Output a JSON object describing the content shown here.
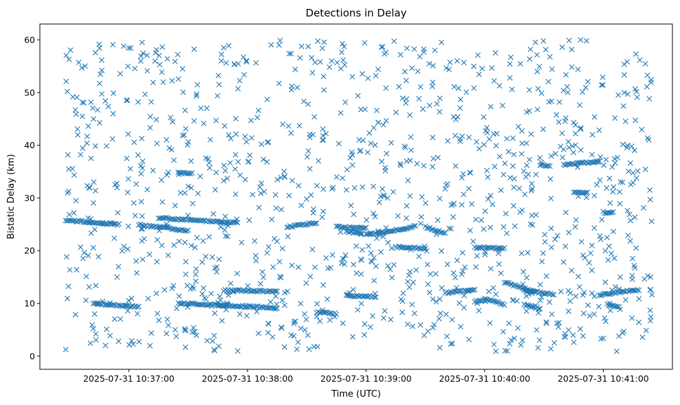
{
  "chart_data": {
    "type": "scatter",
    "title": "Detections in Delay",
    "xlabel": "Time (UTC)",
    "ylabel": "Bistatic Delay (km)",
    "xlim": [
      "2025-07-31 10:36:15",
      "2025-07-31 10:41:35"
    ],
    "ylim": [
      -2.5,
      63
    ],
    "x_ticks": [
      "2025-07-31 10:37:00",
      "2025-07-31 10:38:00",
      "2025-07-31 10:39:00",
      "2025-07-31 10:40:00",
      "2025-07-31 10:41:00"
    ],
    "y_ticks": [
      0,
      10,
      20,
      30,
      40,
      50,
      60
    ],
    "grid": false,
    "marker": "x",
    "color": "#1f77b4",
    "tracks": [
      {
        "x": [
          "2025-07-31 10:36:28",
          "2025-07-31 10:36:55"
        ],
        "y": [
          25.8,
          25.0
        ]
      },
      {
        "x": [
          "2025-07-31 10:36:42",
          "2025-07-31 10:37:05"
        ],
        "y": [
          10.0,
          9.3
        ]
      },
      {
        "x": [
          "2025-07-31 10:37:15",
          "2025-07-31 10:37:55"
        ],
        "y": [
          26.2,
          25.3
        ]
      },
      {
        "x": [
          "2025-07-31 10:37:05",
          "2025-07-31 10:37:30"
        ],
        "y": [
          24.9,
          23.8
        ]
      },
      {
        "x": [
          "2025-07-31 10:37:25",
          "2025-07-31 10:37:50"
        ],
        "y": [
          10.0,
          9.6
        ]
      },
      {
        "x": [
          "2025-07-31 10:37:45",
          "2025-07-31 10:38:15"
        ],
        "y": [
          9.7,
          9.1
        ]
      },
      {
        "x": [
          "2025-07-31 10:37:48",
          "2025-07-31 10:38:15"
        ],
        "y": [
          12.5,
          12.3
        ]
      },
      {
        "x": [
          "2025-07-31 10:37:25",
          "2025-07-31 10:37:32"
        ],
        "y": [
          34.7,
          34.7
        ]
      },
      {
        "x": [
          "2025-07-31 10:38:20",
          "2025-07-31 10:38:35"
        ],
        "y": [
          24.5,
          25.3
        ]
      },
      {
        "x": [
          "2025-07-31 10:38:35",
          "2025-07-31 10:38:45"
        ],
        "y": [
          8.3,
          8.0
        ]
      },
      {
        "x": [
          "2025-07-31 10:38:45",
          "2025-07-31 10:39:00"
        ],
        "y": [
          24.5,
          24.3
        ]
      },
      {
        "x": [
          "2025-07-31 10:38:50",
          "2025-07-31 10:38:58"
        ],
        "y": [
          23.6,
          23.4
        ]
      },
      {
        "x": [
          "2025-07-31 10:38:50",
          "2025-07-31 10:39:05"
        ],
        "y": [
          11.4,
          11.3
        ]
      },
      {
        "x": [
          "2025-07-31 10:39:00",
          "2025-07-31 10:39:25"
        ],
        "y": [
          23.0,
          24.6
        ]
      },
      {
        "x": [
          "2025-07-31 10:39:15",
          "2025-07-31 10:39:30"
        ],
        "y": [
          20.7,
          20.4
        ]
      },
      {
        "x": [
          "2025-07-31 10:39:30",
          "2025-07-31 10:39:40"
        ],
        "y": [
          24.5,
          23.3
        ]
      },
      {
        "x": [
          "2025-07-31 10:39:40",
          "2025-07-31 10:39:55"
        ],
        "y": [
          12.0,
          12.5
        ]
      },
      {
        "x": [
          "2025-07-31 10:39:55",
          "2025-07-31 10:40:10"
        ],
        "y": [
          20.6,
          20.5
        ]
      },
      {
        "x": [
          "2025-07-31 10:39:55",
          "2025-07-31 10:40:00"
        ],
        "y": [
          10.4,
          10.6
        ]
      },
      {
        "x": [
          "2025-07-31 10:40:00",
          "2025-07-31 10:40:10"
        ],
        "y": [
          11.0,
          9.8
        ]
      },
      {
        "x": [
          "2025-07-31 10:40:10",
          "2025-07-31 10:40:25"
        ],
        "y": [
          14.0,
          12.2
        ]
      },
      {
        "x": [
          "2025-07-31 10:40:20",
          "2025-07-31 10:40:35"
        ],
        "y": [
          12.5,
          11.7
        ]
      },
      {
        "x": [
          "2025-07-31 10:40:20",
          "2025-07-31 10:40:28"
        ],
        "y": [
          9.8,
          9.0
        ]
      },
      {
        "x": [
          "2025-07-31 10:40:28",
          "2025-07-31 10:40:33"
        ],
        "y": [
          36.3,
          36.1
        ]
      },
      {
        "x": [
          "2025-07-31 10:40:40",
          "2025-07-31 10:40:58"
        ],
        "y": [
          36.3,
          36.9
        ]
      },
      {
        "x": [
          "2025-07-31 10:40:45",
          "2025-07-31 10:40:52"
        ],
        "y": [
          31.0,
          31.0
        ]
      },
      {
        "x": [
          "2025-07-31 10:40:58",
          "2025-07-31 10:41:18"
        ],
        "y": [
          11.6,
          12.6
        ]
      },
      {
        "x": [
          "2025-07-31 10:41:00",
          "2025-07-31 10:41:05"
        ],
        "y": [
          27.3,
          27.2
        ]
      },
      {
        "x": [
          "2025-07-31 10:41:02",
          "2025-07-31 10:41:08"
        ],
        "y": [
          9.8,
          9.2
        ]
      }
    ],
    "scattered_detections": {
      "x_range": [
        "2025-07-31 10:36:28",
        "2025-07-31 10:41:25"
      ],
      "y_range": [
        0.8,
        60
      ]
    }
  }
}
